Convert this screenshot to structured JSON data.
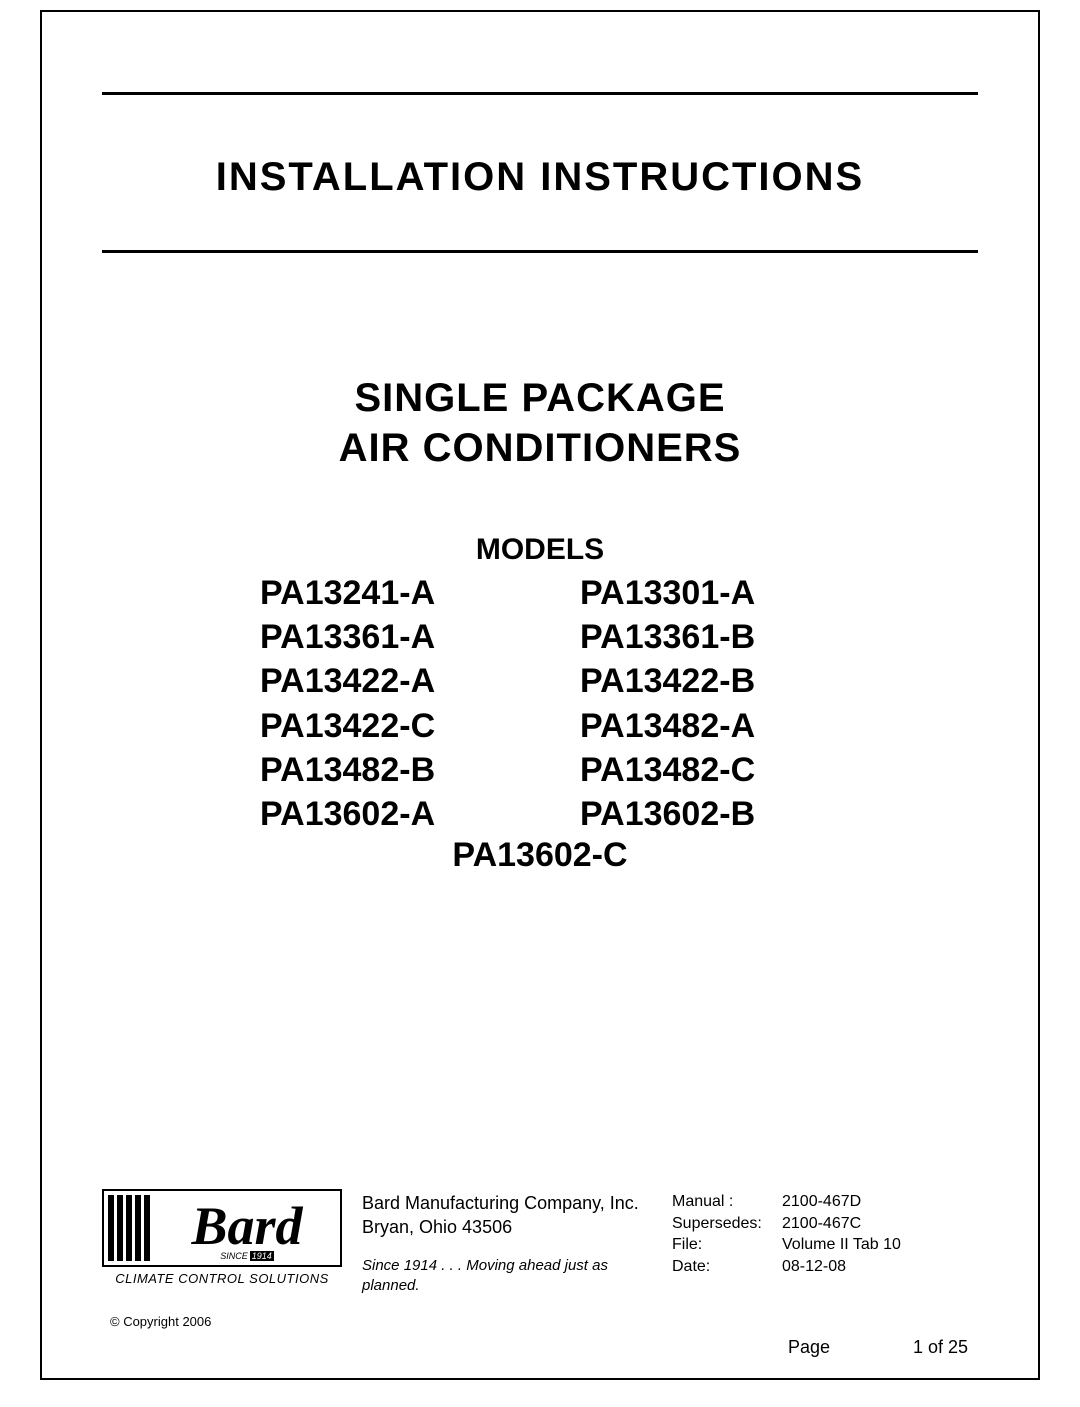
{
  "title1": "INSTALLATION  INSTRUCTIONS",
  "title2_line1": "SINGLE PACKAGE",
  "title2_line2": "AIR CONDITIONERS",
  "models_label": "MODELS",
  "models": [
    "PA13241-A",
    "PA13301-A",
    "PA13361-A",
    "PA13361-B",
    "PA13422-A",
    "PA13422-B",
    "PA13422-C",
    "PA13482-A",
    "PA13482-B",
    "PA13482-C",
    "PA13602-A",
    "PA13602-B"
  ],
  "models_last": "PA13602-C",
  "logo": {
    "brand": "Bard",
    "since_label": "SINCE",
    "since_year": "1914",
    "tagline": "CLIMATE CONTROL SOLUTIONS"
  },
  "company": {
    "name": "Bard Manufacturing Company, Inc.",
    "address": "Bryan, Ohio 43506",
    "tagline": "Since 1914 . . . Moving ahead just as planned."
  },
  "doc_info": {
    "rows": [
      {
        "label": "Manual :",
        "value": "2100-467D"
      },
      {
        "label": "Supersedes:",
        "value": "2100-467C"
      },
      {
        "label": "File:",
        "value": "Volume II Tab 10"
      },
      {
        "label": "Date:",
        "value": "08-12-08"
      }
    ]
  },
  "copyright": "© Copyright 2006",
  "page": {
    "label": "Page",
    "value": "1 of 25"
  }
}
